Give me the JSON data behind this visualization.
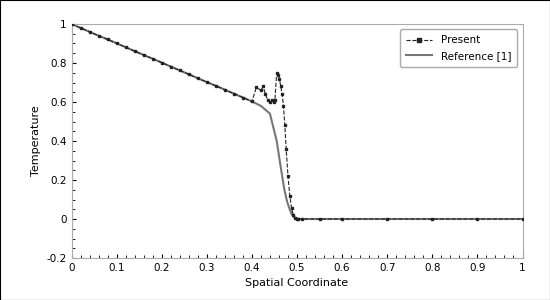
{
  "xlabel": "Spatial Coordinate",
  "ylabel": "Temperature",
  "xlim": [
    0,
    1
  ],
  "ylim": [
    -0.2,
    1.0
  ],
  "xticks": [
    0,
    0.1,
    0.2,
    0.3,
    0.4,
    0.5,
    0.6,
    0.7,
    0.8,
    0.9,
    1.0
  ],
  "yticks": [
    -0.2,
    0,
    0.2,
    0.4,
    0.6,
    0.8,
    1
  ],
  "background_color": "#ffffff",
  "outer_background": "#c8c8c8",
  "legend_entries": [
    "Present",
    "Reference [1]"
  ],
  "present_color": "#222222",
  "reference_color": "#777777",
  "present_linestyle": "--",
  "reference_linestyle": "-",
  "present_marker": "s",
  "marker_size": 2.0,
  "ref_linewidth": 1.5,
  "pres_linewidth": 0.8,
  "x_ref": [
    0.0,
    0.02,
    0.04,
    0.06,
    0.08,
    0.1,
    0.12,
    0.14,
    0.16,
    0.18,
    0.2,
    0.22,
    0.24,
    0.26,
    0.28,
    0.3,
    0.32,
    0.34,
    0.36,
    0.38,
    0.4,
    0.42,
    0.44,
    0.455,
    0.465,
    0.472,
    0.478,
    0.483,
    0.488,
    0.492,
    0.496,
    0.499,
    0.502,
    0.51,
    0.55,
    0.6,
    0.7,
    0.8,
    0.9,
    1.0
  ],
  "y_ref": [
    1.0,
    0.98,
    0.96,
    0.94,
    0.921,
    0.901,
    0.881,
    0.861,
    0.841,
    0.822,
    0.802,
    0.782,
    0.762,
    0.742,
    0.722,
    0.702,
    0.683,
    0.663,
    0.643,
    0.623,
    0.603,
    0.58,
    0.54,
    0.4,
    0.25,
    0.15,
    0.09,
    0.055,
    0.025,
    0.012,
    0.005,
    0.002,
    0.001,
    0.0,
    0.0,
    0.0,
    0.0,
    0.0,
    0.0,
    0.0
  ],
  "x_pres": [
    0.0,
    0.02,
    0.04,
    0.06,
    0.08,
    0.1,
    0.12,
    0.14,
    0.16,
    0.18,
    0.2,
    0.22,
    0.24,
    0.26,
    0.28,
    0.3,
    0.32,
    0.34,
    0.36,
    0.38,
    0.4,
    0.41,
    0.42,
    0.425,
    0.43,
    0.435,
    0.44,
    0.445,
    0.448,
    0.451,
    0.455,
    0.458,
    0.461,
    0.464,
    0.467,
    0.47,
    0.473,
    0.476,
    0.48,
    0.484,
    0.488,
    0.492,
    0.496,
    0.499,
    0.502,
    0.51,
    0.55,
    0.6,
    0.7,
    0.8,
    0.9,
    1.0
  ],
  "y_pres": [
    1.0,
    0.98,
    0.96,
    0.94,
    0.921,
    0.901,
    0.881,
    0.861,
    0.841,
    0.822,
    0.802,
    0.782,
    0.762,
    0.742,
    0.722,
    0.702,
    0.683,
    0.663,
    0.643,
    0.623,
    0.603,
    0.675,
    0.66,
    0.68,
    0.64,
    0.61,
    0.6,
    0.61,
    0.6,
    0.61,
    0.75,
    0.74,
    0.72,
    0.68,
    0.64,
    0.58,
    0.48,
    0.36,
    0.22,
    0.12,
    0.055,
    0.02,
    0.007,
    0.002,
    0.001,
    0.0,
    0.0,
    0.0,
    0.0,
    0.0,
    0.0,
    0.0
  ]
}
